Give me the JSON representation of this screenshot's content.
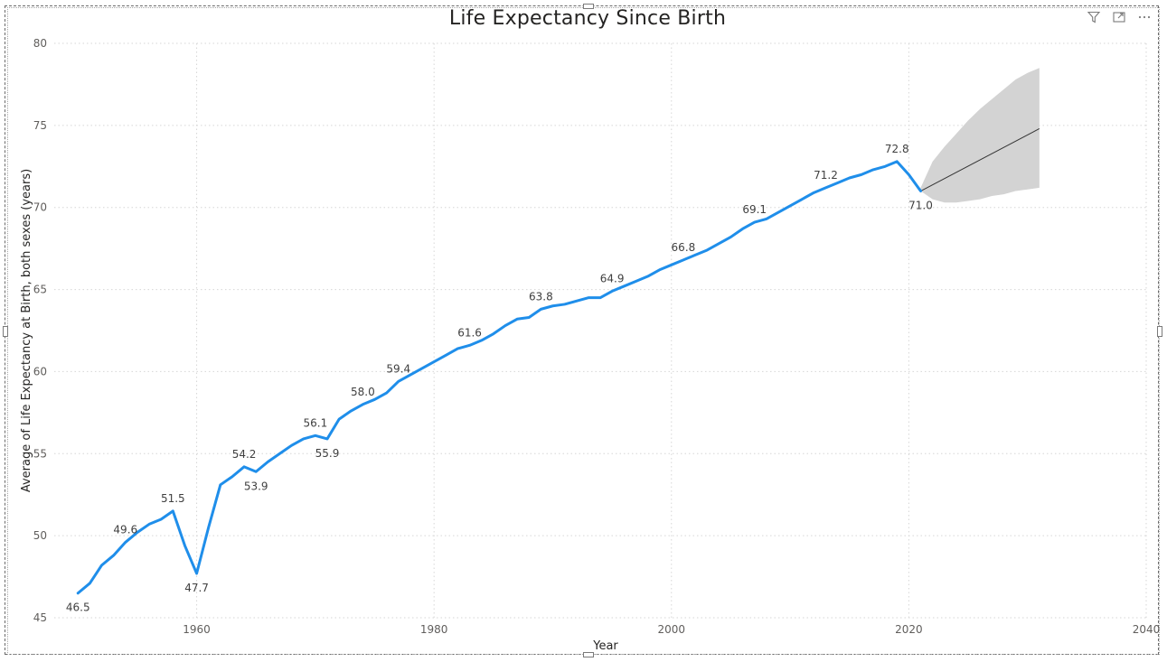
{
  "visual": {
    "title": "Life Expectancy Since Birth",
    "toolbar": [
      {
        "name": "filter-icon"
      },
      {
        "name": "focus-mode-icon"
      },
      {
        "name": "more-options-icon"
      }
    ]
  },
  "colors": {
    "series": "#1f8eea",
    "forecast_line": "#333333",
    "forecast_band": "#d3d3d3",
    "grid": "#d6d6d6",
    "tick_text": "#605e5c",
    "label_text": "#404040"
  },
  "chart_data": {
    "type": "line",
    "title": "Life Expectancy Since Birth",
    "xlabel": "Year",
    "ylabel": "Average of Life Expectancy at Birth, both sexes (years)",
    "xlim": [
      1948,
      2040
    ],
    "ylim": [
      45,
      80
    ],
    "x_ticks": [
      1960,
      1980,
      2000,
      2020,
      2040
    ],
    "y_ticks": [
      45,
      50,
      55,
      60,
      65,
      70,
      75,
      80
    ],
    "grid": true,
    "series": [
      {
        "x": [
          1950,
          1951,
          1952,
          1953,
          1954,
          1955,
          1956,
          1957,
          1958,
          1959,
          1960,
          1961,
          1962,
          1963,
          1964,
          1965,
          1966,
          1967,
          1968,
          1969,
          1970,
          1971,
          1972,
          1973,
          1974,
          1975,
          1976,
          1977,
          1978,
          1979,
          1980,
          1981,
          1982,
          1983,
          1984,
          1985,
          1986,
          1987,
          1988,
          1989,
          1990,
          1991,
          1992,
          1993,
          1994,
          1995,
          1996,
          1997,
          1998,
          1999,
          2000,
          2001,
          2002,
          2003,
          2004,
          2005,
          2006,
          2007,
          2008,
          2009,
          2010,
          2011,
          2012,
          2013,
          2014,
          2015,
          2016,
          2017,
          2018,
          2019,
          2020,
          2021
        ],
        "values": [
          46.5,
          47.1,
          48.2,
          48.8,
          49.6,
          50.2,
          50.7,
          51.0,
          51.5,
          49.4,
          47.7,
          50.5,
          53.1,
          53.6,
          54.2,
          53.9,
          54.5,
          55.0,
          55.5,
          55.9,
          56.1,
          55.9,
          57.1,
          57.6,
          58.0,
          58.3,
          58.7,
          59.4,
          59.8,
          60.2,
          60.6,
          61.0,
          61.4,
          61.6,
          61.9,
          62.3,
          62.8,
          63.2,
          63.3,
          63.8,
          64.0,
          64.1,
          64.3,
          64.5,
          64.5,
          64.9,
          65.2,
          65.5,
          65.8,
          66.2,
          66.5,
          66.8,
          67.1,
          67.4,
          67.8,
          68.2,
          68.7,
          69.1,
          69.3,
          69.7,
          70.1,
          70.5,
          70.9,
          71.2,
          71.5,
          71.8,
          72.0,
          72.3,
          72.5,
          72.8,
          72.0,
          71.0
        ]
      }
    ],
    "data_labels": [
      {
        "x": 1950,
        "y": 46.5,
        "text": "46.5",
        "pos": "below"
      },
      {
        "x": 1954,
        "y": 49.6,
        "text": "49.6",
        "pos": "above"
      },
      {
        "x": 1958,
        "y": 51.5,
        "text": "51.5",
        "pos": "above"
      },
      {
        "x": 1960,
        "y": 47.7,
        "text": "47.7",
        "pos": "below"
      },
      {
        "x": 1964,
        "y": 54.2,
        "text": "54.2",
        "pos": "above"
      },
      {
        "x": 1965,
        "y": 53.9,
        "text": "53.9",
        "pos": "below"
      },
      {
        "x": 1970,
        "y": 56.1,
        "text": "56.1",
        "pos": "above"
      },
      {
        "x": 1971,
        "y": 55.9,
        "text": "55.9",
        "pos": "below"
      },
      {
        "x": 1974,
        "y": 58.0,
        "text": "58.0",
        "pos": "above"
      },
      {
        "x": 1977,
        "y": 59.4,
        "text": "59.4",
        "pos": "above"
      },
      {
        "x": 1983,
        "y": 61.6,
        "text": "61.6",
        "pos": "above"
      },
      {
        "x": 1989,
        "y": 63.8,
        "text": "63.8",
        "pos": "above"
      },
      {
        "x": 1995,
        "y": 64.9,
        "text": "64.9",
        "pos": "above"
      },
      {
        "x": 2001,
        "y": 66.8,
        "text": "66.8",
        "pos": "above"
      },
      {
        "x": 2007,
        "y": 69.1,
        "text": "69.1",
        "pos": "above"
      },
      {
        "x": 2013,
        "y": 71.2,
        "text": "71.2",
        "pos": "above"
      },
      {
        "x": 2019,
        "y": 72.8,
        "text": "72.8",
        "pos": "above"
      },
      {
        "x": 2021,
        "y": 71.0,
        "text": "71.0",
        "pos": "below"
      }
    ],
    "forecast": {
      "x": [
        2021,
        2031
      ],
      "values": [
        71.0,
        74.8
      ],
      "band_upper": [
        [
          2021,
          71.2
        ],
        [
          2022,
          72.8
        ],
        [
          2023,
          73.7
        ],
        [
          2024,
          74.5
        ],
        [
          2025,
          75.3
        ],
        [
          2026,
          76.0
        ],
        [
          2027,
          76.6
        ],
        [
          2028,
          77.2
        ],
        [
          2029,
          77.8
        ],
        [
          2030,
          78.2
        ],
        [
          2031,
          78.5
        ]
      ],
      "band_lower": [
        [
          2021,
          71.0
        ],
        [
          2022,
          70.5
        ],
        [
          2023,
          70.3
        ],
        [
          2024,
          70.3
        ],
        [
          2025,
          70.4
        ],
        [
          2026,
          70.5
        ],
        [
          2027,
          70.7
        ],
        [
          2028,
          70.8
        ],
        [
          2029,
          71.0
        ],
        [
          2030,
          71.1
        ],
        [
          2031,
          71.2
        ]
      ]
    }
  }
}
